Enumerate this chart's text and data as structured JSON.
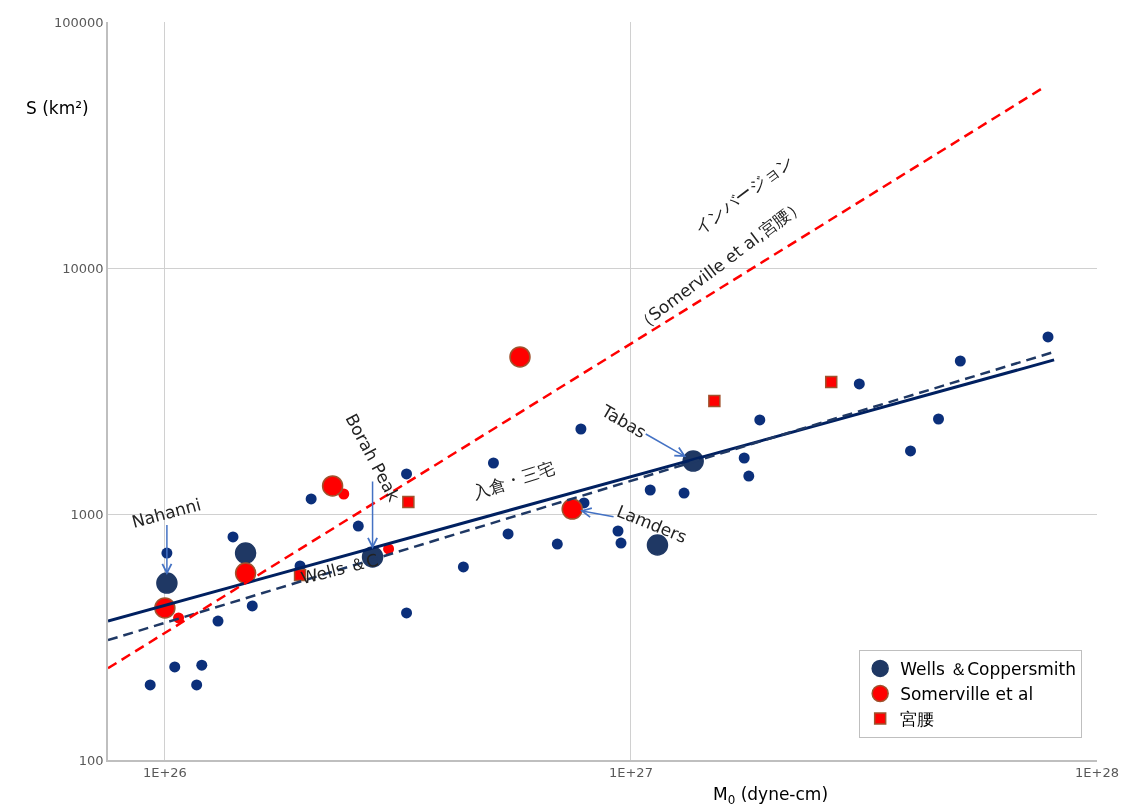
{
  "chart_data": {
    "type": "scatter",
    "xlabel": "M$_{0}$ (dyne-cm)",
    "ylabel": "S (km²)",
    "log": "xy",
    "xlim": [
      7.55e+25,
      1e+28
    ],
    "xticks": [
      {
        "value": 1e+26,
        "label": "1E+26"
      },
      {
        "value": 1e+27,
        "label": "1E+27"
      },
      {
        "value": 1e+28,
        "label": "1E+28"
      }
    ],
    "ylim": [
      100,
      100000
    ],
    "yticks": [
      100,
      1000,
      10000,
      100000
    ],
    "grid": true,
    "legend": "bottom right",
    "series": [
      {
        "marker": "circle",
        "color": "#0b2f7a",
        "x": [
          9.3e+25,
          1e+26,
          1.01e+26,
          1.05e+26,
          1.17e+26,
          1.2e+26,
          1.3e+26,
          1.4e+26,
          1.54e+26,
          1.95e+26,
          2.06e+26,
          2.6e+26,
          3.3e+26,
          3.3e+26,
          4.37e+26,
          5.07e+26,
          5.45e+26,
          6.95e+26,
          7.81e+26,
          7.93e+26,
          9.38e+26,
          9.52e+26,
          1.1e+27,
          1.3e+27,
          1.75e+27,
          1.79e+27,
          1.89e+27,
          3.09e+27,
          3.98e+27,
          4.57e+27,
          5.09e+27,
          7.85e+27
        ],
        "values": [
          202,
          null,
          694,
          239,
          202,
          243,
          367,
          807,
          423,
          615,
          1151,
          893,
          1455,
          396,
          609,
          1612,
          830,
          755,
          2216,
          1109,
          853,
          762,
          1252,
          1217,
          1689,
          1426,
          2411,
          3377,
          1804,
          2433,
          4188,
          5248
        ]
      },
      {
        "marker": "circle",
        "name": "Wells ＆Coppersmith",
        "color": "#1f3864",
        "x": [
          1.01e+26,
          1.49e+26,
          2.79e+26,
          1.36e+27,
          1.14e+27
        ],
        "values": [
          524,
          694,
          669,
          1641,
          748
        ]
      },
      {
        "marker": "circle",
        "color": "#ff0000",
        "x": [
          1.07e+26,
          2.42e+26,
          3.02e+26
        ],
        "values": [
          378,
          1206,
          721
        ]
      },
      {
        "marker": "circle",
        "name": "Somerville et al",
        "color": "#ff0000",
        "x": [
          1e+26,
          1.49e+26,
          2.29e+26,
          5.78e+26,
          7.48e+26
        ],
        "values": [
          415,
          575,
          1300,
          4350,
          1047
        ]
      },
      {
        "marker": "square",
        "name": "宮腰",
        "color": "#ff0000",
        "x": [
          1.95e+26,
          3.33e+26,
          1.51e+27,
          2.69e+27
        ],
        "values": [
          565,
          1119,
          2877,
          3442
        ]
      },
      {
        "type": "line",
        "line_style": "solid",
        "color": "#002060",
        "x": [
          7.55e+25,
          8.09e+27
        ],
        "values": [
          367,
          4230
        ]
      },
      {
        "type": "line",
        "line_style": "dashed",
        "color": "#1f3864",
        "x": [
          7.55e+25,
          8.09e+27
        ],
        "values": [
          307,
          4560
        ]
      },
      {
        "type": "line",
        "line_style": "dashed",
        "color": "#ff0000",
        "x": [
          7.55e+25,
          7.66e+27
        ],
        "values": [
          236,
          54000
        ]
      }
    ],
    "annotations": [
      {
        "text": "Nahanni",
        "x": 1.01e+26,
        "y": 524
      },
      {
        "text": "Borah Peak",
        "x": 2.79e+26,
        "y": 669
      },
      {
        "text": "Tabas",
        "x": 1.36e+27,
        "y": 1641
      },
      {
        "text": "Lamders",
        "x": 7.48e+26,
        "y": 1047
      },
      "入倉・三宅",
      "Wells ＆C",
      "インバージョン",
      "（Somerville et al,宮腰）"
    ]
  }
}
